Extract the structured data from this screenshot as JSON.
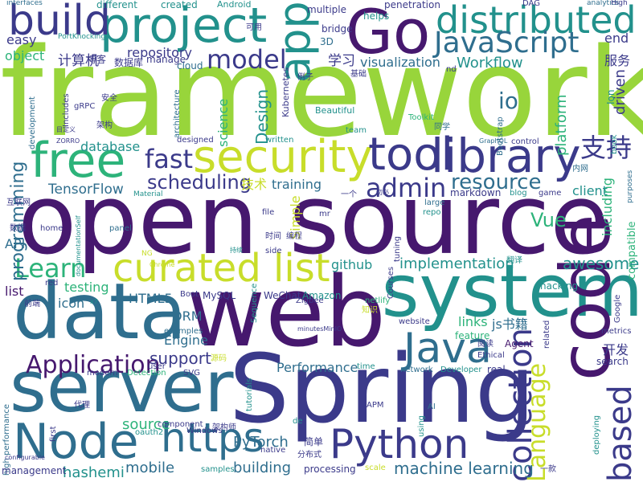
{
  "palette": {
    "purple": "#46186e",
    "indigo": "#3b3a8a",
    "blue": "#2f6e8e",
    "teal": "#22918c",
    "green": "#2db37a",
    "lime": "#98d53b",
    "yellow": "#c8dd2a",
    "dark": "#3c1557"
  },
  "words": [
    "framework",
    "open source",
    "web",
    "Spring",
    "system",
    "data",
    "server",
    "code",
    "Go",
    "project",
    "distributed",
    "build",
    "library",
    "security",
    "tool",
    "free",
    "app",
    "JavaScript",
    "model",
    "curated list",
    "Java",
    "Node",
    "Python",
    "https",
    "based",
    "collection",
    "fast",
    "admin",
    "支持",
    "resource",
    "Learn",
    "scheduling",
    "io",
    "Language",
    "Application",
    "programming",
    "TensorFlow",
    "support",
    "Vue",
    "awesome",
    "implementation",
    "machine learning",
    "building",
    "PyTorch",
    "mobile",
    "source",
    "hashemi",
    "driven",
    "platform",
    "Workflow",
    "visualization",
    "学习",
    "服务",
    "计算机",
    "easy",
    "object",
    "repository",
    "Design",
    "science",
    "database",
    "training",
    "技术",
    "Simple",
    "github",
    "testing",
    "HTML5",
    "icon",
    "ORM",
    "Engine",
    "Performance",
    "links",
    "js书籍",
    "开发",
    "Kubernetes",
    "Beautiful",
    "markdown",
    "including",
    "compatible",
    "client",
    "API",
    "list",
    "end",
    "interfaces",
    "different",
    "created",
    "Android",
    "multiple",
    "penetration",
    "DAG",
    "analytics",
    "High",
    "bridge",
    "helps",
    "manage",
    "cloud",
    "3D",
    "可用",
    "博客",
    "数据库",
    "architecture",
    "Includes",
    "gRPC",
    "development",
    "安全",
    "架构",
    "Bootstrap",
    "Toolkit",
    "team",
    "同学",
    "control",
    "GraphQL",
    "ZORRO",
    "目定义",
    "designed",
    "written",
    "内网",
    "一个",
    "blog",
    "game",
    "book",
    "purposes",
    "互联网",
    "Material",
    "file",
    "mr",
    "large",
    "repo",
    "tuning",
    "翻译",
    "数据",
    "home",
    "panel",
    "documentationSelf",
    "时间",
    "编程",
    "side",
    "持续",
    "Chrome",
    "NG",
    "前端",
    "red",
    "x7",
    "Courses",
    "hacking",
    "Zigbee",
    "netlify",
    "知识",
    "WeChat",
    "MySQL",
    "Boot",
    "Amazon",
    "Google",
    "Sequence",
    "Ethical",
    "Agent",
    "feature",
    "阅读",
    "related",
    "metrics",
    "search",
    "website",
    "minutesMinIO",
    "modern",
    "Detection",
    "SVG",
    "user",
    "examples",
    "time",
    "network",
    "Developer",
    "real",
    "tutorials",
    "源码",
    "代理",
    "de",
    "APM",
    "AI",
    "using",
    "deploying",
    "component",
    "架构师",
    "Windows",
    "native",
    "oauth2",
    "samples",
    "简单",
    "分布式",
    "processing",
    "scale",
    "一款",
    "high performance",
    "management",
    "configurable",
    "first",
    "基础",
    "例子",
    "PortKnocking",
    "nd",
    "勿必",
    "Ion"
  ]
}
